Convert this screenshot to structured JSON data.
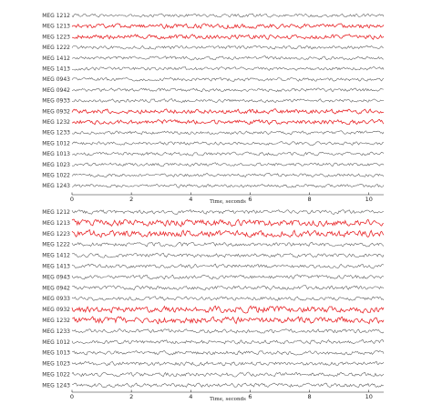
{
  "chart_data": [
    {
      "type": "line",
      "xlabel": "Time, seconds",
      "xlim": [
        0,
        10.5
      ],
      "xticks": [
        0,
        2,
        4,
        6,
        8,
        10
      ],
      "channels": [
        "MEG 1212",
        "MEG 1213",
        "MEG 1223",
        "MEG 1222",
        "MEG 1412",
        "MEG 1413",
        "MEG 0943",
        "MEG 0942",
        "MEG 0933",
        "MEG 0932",
        "MEG 1232",
        "MEG 1233",
        "MEG 1012",
        "MEG 1013",
        "MEG 1023",
        "MEG 1022",
        "MEG 1243"
      ],
      "highlighted": [
        "MEG 1213",
        "MEG 1223",
        "MEG 0932",
        "MEG 1232"
      ],
      "colors": {
        "normal": "#555555",
        "highlighted": "#e8272a"
      }
    },
    {
      "type": "line",
      "xlabel": "Time, seconds",
      "xlim": [
        0,
        10.5
      ],
      "xticks": [
        0,
        2,
        4,
        6,
        8,
        10
      ],
      "channels": [
        "MEG 1212",
        "MEG 1213",
        "MEG 1223",
        "MEG 1222",
        "MEG 1412",
        "MEG 1413",
        "MEG 0943",
        "MEG 0942",
        "MEG 0933",
        "MEG 0932",
        "MEG 1232",
        "MEG 1233",
        "MEG 1012",
        "MEG 1013",
        "MEG 1023",
        "MEG 1022",
        "MEG 1243"
      ],
      "highlighted": [
        "MEG 1213",
        "MEG 1223",
        "MEG 0932",
        "MEG 1232"
      ],
      "colors": {
        "normal": "#555555",
        "highlighted": "#e8272a"
      }
    }
  ]
}
